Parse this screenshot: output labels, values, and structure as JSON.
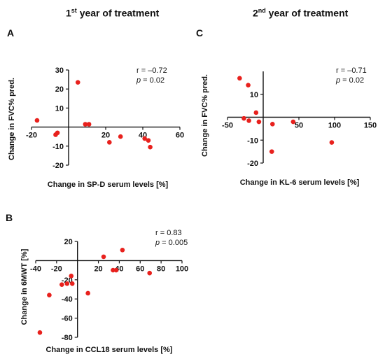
{
  "headers": {
    "year1": {
      "base": "1",
      "sup": "st",
      "rest": " year of treatment"
    },
    "year2": {
      "base": "2",
      "sup": "nd",
      "rest": " year of treatment"
    }
  },
  "colors": {
    "points": "#e8211d",
    "axes": "#111111"
  },
  "chart_data": [
    {
      "panel": "A",
      "type": "scatter",
      "xlabel": "Change in SP-D serum levels [%]",
      "ylabel": "Change in FVC% pred.",
      "xlim": [
        -20,
        60
      ],
      "ylim": [
        -20,
        30
      ],
      "x_ticks": [
        -20,
        20,
        40,
        60
      ],
      "y_ticks": [
        -20,
        -10,
        10,
        20,
        30
      ],
      "stats": {
        "r": "r = –0.72",
        "p_label": "p",
        "p_value": " = 0.02"
      },
      "points": [
        {
          "x": -17,
          "y": 3.5
        },
        {
          "x": -6,
          "y": -3
        },
        {
          "x": -7,
          "y": -4
        },
        {
          "x": 5,
          "y": 23.5
        },
        {
          "x": 9,
          "y": 1.5
        },
        {
          "x": 11,
          "y": 1.5
        },
        {
          "x": 22,
          "y": -8
        },
        {
          "x": 28,
          "y": -5
        },
        {
          "x": 41,
          "y": -6
        },
        {
          "x": 43,
          "y": -7
        },
        {
          "x": 44,
          "y": -10.5
        }
      ]
    },
    {
      "panel": "B",
      "type": "scatter",
      "xlabel": "Change in CCL18 serum levels [%]",
      "ylabel": "Change in 6MWT [%]",
      "xlim": [
        -40,
        100
      ],
      "ylim": [
        -80,
        20
      ],
      "x_ticks": [
        -40,
        -20,
        20,
        40,
        60,
        80,
        100
      ],
      "y_ticks": [
        -80,
        -60,
        -40,
        -20,
        20
      ],
      "stats": {
        "r": "r = 0.83",
        "p_label": "p",
        "p_value": " = 0.005"
      },
      "points": [
        {
          "x": -36,
          "y": -75
        },
        {
          "x": -27,
          "y": -36
        },
        {
          "x": -15,
          "y": -25
        },
        {
          "x": -10,
          "y": -24
        },
        {
          "x": -5,
          "y": -24
        },
        {
          "x": -6,
          "y": -16
        },
        {
          "x": 10,
          "y": -34
        },
        {
          "x": 25,
          "y": 4
        },
        {
          "x": 34,
          "y": -10
        },
        {
          "x": 37,
          "y": -10
        },
        {
          "x": 43,
          "y": 11
        },
        {
          "x": 69,
          "y": -13
        }
      ]
    },
    {
      "panel": "C",
      "type": "scatter",
      "xlabel": "Change in KL-6 serum levels [%]",
      "ylabel": "Change in FVC% pred.",
      "xlim": [
        -50,
        150
      ],
      "ylim": [
        -20,
        20
      ],
      "x_ticks": [
        -50,
        50,
        100,
        150
      ],
      "y_ticks": [
        -20,
        -10,
        10
      ],
      "stats": {
        "r": "r = –0.71",
        "p_label": "p",
        "p_value": " = 0.02"
      },
      "points": [
        {
          "x": -33,
          "y": 17
        },
        {
          "x": -21,
          "y": 14
        },
        {
          "x": -10,
          "y": 2
        },
        {
          "x": -27,
          "y": -0.5
        },
        {
          "x": -20,
          "y": -1.5
        },
        {
          "x": -6,
          "y": -2
        },
        {
          "x": 13,
          "y": -3
        },
        {
          "x": 42,
          "y": -2
        },
        {
          "x": 12,
          "y": -15
        },
        {
          "x": 96,
          "y": -11
        }
      ]
    }
  ]
}
